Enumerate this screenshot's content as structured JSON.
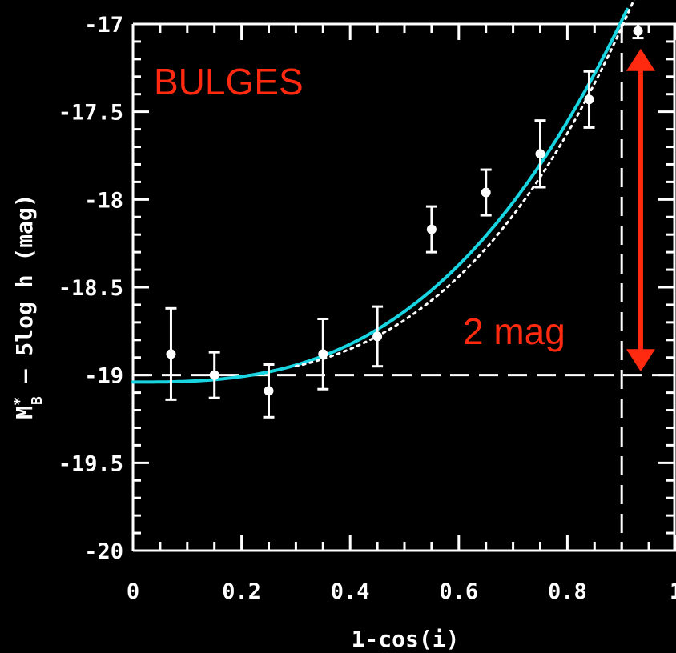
{
  "chart_data": {
    "type": "scatter",
    "xlabel": "1-cos(i)",
    "ylabel": {
      "symbol": "M",
      "sup": "*",
      "sub": "B",
      "rest": " — 5log h (mag)"
    },
    "xlim": [
      0,
      1
    ],
    "ylim": [
      -20,
      -17
    ],
    "y_inverted": true,
    "x_ticks": [
      "0",
      "0.2",
      "0.4",
      "0.6",
      "0.8",
      "1"
    ],
    "y_ticks": [
      "-17",
      "-17.5",
      "-18",
      "-18.5",
      "-19",
      "-19.5",
      "-20"
    ],
    "series": [
      {
        "kind": "points_with_errorbars",
        "color": "#ffffff",
        "x": [
          0.07,
          0.15,
          0.25,
          0.35,
          0.45,
          0.55,
          0.65,
          0.75,
          0.84,
          0.93
        ],
        "y": [
          -18.88,
          -19.0,
          -19.09,
          -18.88,
          -18.78,
          -18.17,
          -17.96,
          -17.74,
          -17.43,
          -17.04
        ],
        "err": [
          0.26,
          0.13,
          0.15,
          0.2,
          0.17,
          0.13,
          0.13,
          0.19,
          0.16,
          0.04
        ]
      },
      {
        "kind": "model_curve_solid",
        "color": "#19d5e2",
        "y0": -19.04,
        "coef": 2.76,
        "power": 2.78,
        "x_range": [
          0,
          0.91
        ]
      },
      {
        "kind": "model_curve_dotted",
        "color": "#ffffff",
        "y0": -19.02,
        "coef": 2.76,
        "power": 3.05,
        "x_range": [
          0.3,
          0.95
        ]
      }
    ],
    "reference_lines": [
      {
        "orientation": "horizontal",
        "value": -19,
        "style": "dashed",
        "color": "#ffffff"
      },
      {
        "orientation": "vertical",
        "value": 0.9,
        "style": "dashed",
        "color": "#ffffff"
      }
    ],
    "annotations": [
      {
        "text": "BULGES",
        "color": "#ff2a10"
      },
      {
        "text": "2 mag",
        "color": "#ff2a10",
        "arrow_from": -17.14,
        "arrow_to": -18.98,
        "arrow_x": 0.935
      }
    ]
  }
}
